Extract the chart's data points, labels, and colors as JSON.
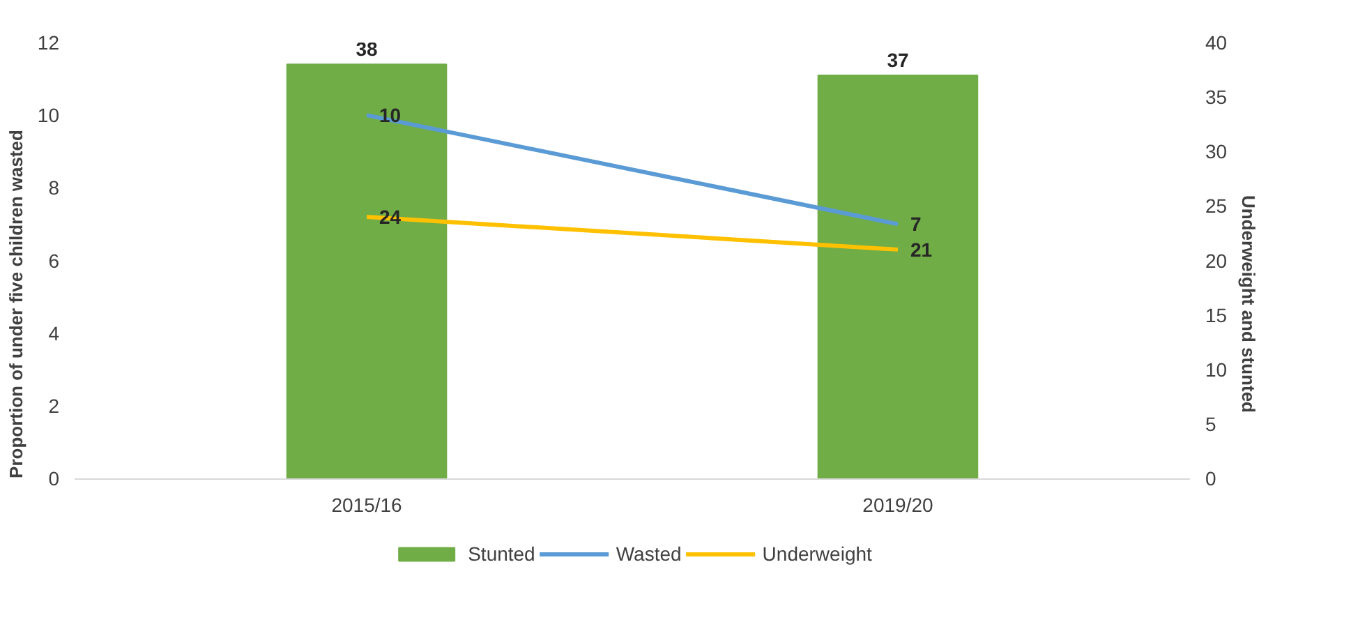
{
  "chart_data": {
    "type": "bar",
    "categories": [
      "2015/16",
      "2019/20"
    ],
    "ylabel": "Proportion of under five children wasted",
    "y2label": "Underweight and stunted",
    "ylim": [
      0,
      12
    ],
    "yticks": [
      0,
      2,
      4,
      6,
      8,
      10,
      12
    ],
    "y2lim": [
      0,
      40
    ],
    "y2ticks": [
      0,
      5,
      10,
      15,
      20,
      25,
      30,
      35,
      40
    ],
    "series": [
      {
        "name": "Stunted",
        "axis": "y2",
        "color": "#70ad47",
        "values": [
          38,
          37
        ]
      },
      {
        "name": "Wasted",
        "type": "line",
        "axis": "y",
        "color": "#5b9bd5",
        "values": [
          10,
          7
        ]
      },
      {
        "name": "Underweight",
        "type": "line",
        "axis": "y2",
        "color": "#ffc000",
        "values": [
          24,
          21
        ]
      }
    ],
    "data_labels": true,
    "legend": "bottom",
    "grid": false
  }
}
